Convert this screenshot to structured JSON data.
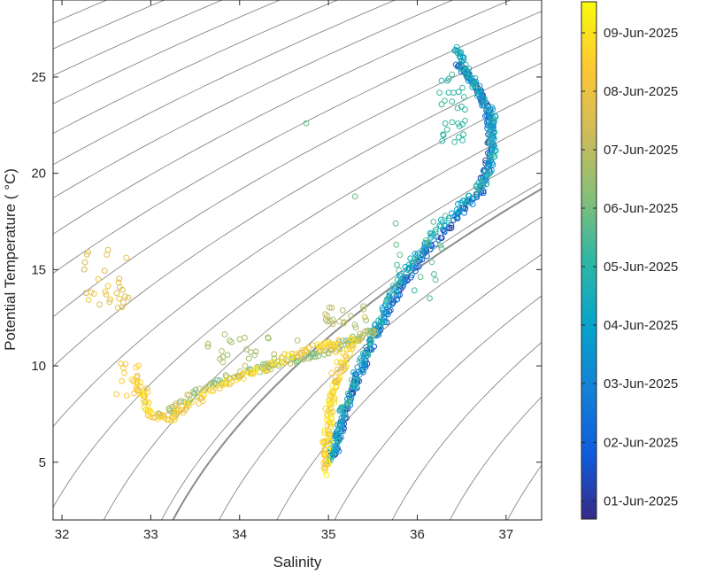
{
  "chart_data": {
    "type": "scatter",
    "xlabel": "Salinity",
    "ylabel": "Potential Temperature ( °C)",
    "xlim": [
      31.9,
      37.4
    ],
    "ylim": [
      2.0,
      29.0
    ],
    "x_ticks": [
      "32",
      "33",
      "34",
      "35",
      "36",
      "37"
    ],
    "y_ticks": [
      "5",
      "10",
      "15",
      "20",
      "25"
    ],
    "grid": false,
    "density_contours": "thin gray isopycnal lines, one highlighted darker",
    "colorbar": {
      "label_color_scale": "parula",
      "ticks": [
        "01-Jun-2025",
        "02-Jun-2025",
        "03-Jun-2025",
        "04-Jun-2025",
        "05-Jun-2025",
        "06-Jun-2025",
        "07-Jun-2025",
        "08-Jun-2025",
        "09-Jun-2025"
      ],
      "tick_values": [
        0.035,
        0.148,
        0.262,
        0.375,
        0.488,
        0.601,
        0.714,
        0.827,
        0.94
      ]
    },
    "color_stops": [
      "#352a87",
      "#0f5cdd",
      "#1481d6",
      "#06a4ca",
      "#2eb7a4",
      "#87bf77",
      "#d1bb59",
      "#fec832",
      "#f9fb0e"
    ],
    "series": [
      {
        "time_from": 0.0,
        "time_to": 0.3,
        "points": [
          [
            36.45,
            25.6
          ],
          [
            36.55,
            25.3
          ],
          [
            36.6,
            24.9
          ],
          [
            36.7,
            24.2
          ],
          [
            36.78,
            23.5
          ],
          [
            36.82,
            22.8
          ],
          [
            36.83,
            22.0
          ],
          [
            36.82,
            21.0
          ],
          [
            36.78,
            20.0
          ],
          [
            36.7,
            19.0
          ],
          [
            36.5,
            18.0
          ],
          [
            36.3,
            17.0
          ],
          [
            36.1,
            16.0
          ],
          [
            35.95,
            15.0
          ],
          [
            35.8,
            14.0
          ],
          [
            35.7,
            13.0
          ],
          [
            35.58,
            12.0
          ],
          [
            35.47,
            11.0
          ],
          [
            35.38,
            10.0
          ],
          [
            35.3,
            9.0
          ],
          [
            35.22,
            8.0
          ],
          [
            35.15,
            7.0
          ],
          [
            35.1,
            6.0
          ],
          [
            35.05,
            5.2
          ]
        ]
      },
      {
        "time_from": 0.3,
        "time_to": 0.55,
        "points": [
          [
            36.45,
            26.5
          ],
          [
            36.5,
            25.8
          ],
          [
            36.6,
            25.0
          ],
          [
            36.7,
            24.0
          ],
          [
            36.85,
            23.0
          ],
          [
            36.85,
            22.0
          ],
          [
            36.85,
            21.0
          ],
          [
            36.8,
            20.0
          ],
          [
            36.7,
            19.2
          ],
          [
            36.45,
            18.2
          ],
          [
            36.2,
            17.0
          ],
          [
            36.0,
            15.8
          ],
          [
            35.85,
            14.8
          ],
          [
            35.7,
            13.6
          ],
          [
            35.6,
            12.5
          ],
          [
            35.48,
            11.4
          ],
          [
            35.38,
            10.2
          ],
          [
            35.28,
            9.0
          ],
          [
            35.18,
            7.8
          ],
          [
            35.12,
            6.8
          ],
          [
            35.06,
            5.8
          ],
          [
            35.02,
            5.0
          ]
        ]
      },
      {
        "time_from": 0.55,
        "time_to": 0.78,
        "points": [
          [
            35.5,
            11.8
          ],
          [
            35.35,
            11.5
          ],
          [
            35.2,
            11.2
          ],
          [
            35.0,
            10.8
          ],
          [
            34.8,
            10.5
          ],
          [
            34.5,
            10.2
          ],
          [
            34.2,
            9.8
          ],
          [
            33.9,
            9.4
          ],
          [
            33.6,
            8.8
          ],
          [
            33.3,
            8.0
          ],
          [
            33.1,
            7.4
          ]
        ]
      },
      {
        "time_from": 0.78,
        "time_to": 0.98,
        "points": [
          [
            35.3,
            11.4
          ],
          [
            35.2,
            10.5
          ],
          [
            35.1,
            9.5
          ],
          [
            35.05,
            8.5
          ],
          [
            35.0,
            7.5
          ],
          [
            34.98,
            6.5
          ],
          [
            34.96,
            5.5
          ],
          [
            34.96,
            4.5
          ],
          [
            35.1,
            11.2
          ],
          [
            34.9,
            11.0
          ],
          [
            34.6,
            10.6
          ],
          [
            34.3,
            10.0
          ],
          [
            34.0,
            9.4
          ],
          [
            33.7,
            8.8
          ],
          [
            33.4,
            7.9
          ],
          [
            33.2,
            7.2
          ],
          [
            33.0,
            7.5
          ],
          [
            32.9,
            8.5
          ],
          [
            32.8,
            9.5
          ]
        ]
      }
    ],
    "scatter_clusters": [
      {
        "x": 32.5,
        "y": 14.5,
        "spread_x": 0.25,
        "spread_y": 1.6,
        "n": 30,
        "time": 0.8
      },
      {
        "x": 32.8,
        "y": 9.2,
        "spread_x": 0.2,
        "spread_y": 1.0,
        "n": 14,
        "time": 0.85
      },
      {
        "x": 34.2,
        "y": 10.8,
        "spread_x": 0.6,
        "spread_y": 0.9,
        "n": 26,
        "time": 0.68
      },
      {
        "x": 35.2,
        "y": 12.5,
        "spread_x": 0.25,
        "spread_y": 0.6,
        "n": 20,
        "time": 0.7
      },
      {
        "x": 36.4,
        "y": 23.5,
        "spread_x": 0.15,
        "spread_y": 2.0,
        "n": 30,
        "time": 0.5
      },
      {
        "x": 36.0,
        "y": 15.5,
        "spread_x": 0.3,
        "spread_y": 2.0,
        "n": 18,
        "time": 0.55
      },
      {
        "x": 34.75,
        "y": 22.6,
        "spread_x": 0.0,
        "spread_y": 0.0,
        "n": 1,
        "time": 0.6
      },
      {
        "x": 35.3,
        "y": 18.8,
        "spread_x": 0.0,
        "spread_y": 0.0,
        "n": 1,
        "time": 0.6
      }
    ]
  }
}
